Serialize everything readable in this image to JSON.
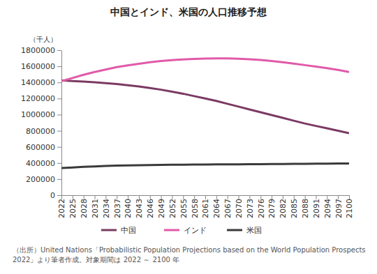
{
  "chart_data": {
    "type": "line",
    "title": "中国とインド、米国の人口推移予想",
    "y_label": "（千人）",
    "source": "（出所）United Nations「Probabilistic Population Projections based on the World Population Prospects 2022」より筆者作成。対象期間は 2022 ～ 2100 年",
    "x": [
      2022,
      2025,
      2028,
      2031,
      2034,
      2037,
      2040,
      2043,
      2046,
      2049,
      2052,
      2055,
      2058,
      2061,
      2064,
      2067,
      2070,
      2073,
      2076,
      2079,
      2082,
      2085,
      2088,
      2091,
      2094,
      2097,
      2100
    ],
    "series": [
      {
        "name": "中国",
        "color": "#7b3a63",
        "values": [
          1425000,
          1418000,
          1410000,
          1402000,
          1392000,
          1380000,
          1365000,
          1350000,
          1330000,
          1310000,
          1285000,
          1260000,
          1230000,
          1200000,
          1170000,
          1135000,
          1100000,
          1065000,
          1030000,
          995000,
          960000,
          925000,
          890000,
          860000,
          830000,
          800000,
          770000
        ]
      },
      {
        "name": "インド",
        "color": "#e05aa8",
        "values": [
          1417000,
          1455000,
          1495000,
          1530000,
          1560000,
          1590000,
          1612000,
          1632000,
          1650000,
          1665000,
          1677000,
          1686000,
          1692000,
          1697000,
          1698000,
          1698000,
          1694000,
          1688000,
          1678000,
          1665000,
          1650000,
          1633000,
          1615000,
          1596000,
          1577000,
          1555000,
          1530000
        ]
      },
      {
        "name": "米国",
        "color": "#3a3a3a",
        "values": [
          338000,
          345000,
          352000,
          358000,
          363000,
          367000,
          370000,
          372000,
          374000,
          376000,
          378000,
          379000,
          380000,
          381000,
          382000,
          383000,
          384000,
          385000,
          386000,
          387000,
          388000,
          389000,
          390000,
          391000,
          392000,
          393000,
          394000
        ]
      }
    ],
    "xlim": [
      2022,
      2100
    ],
    "xticks": [
      2022,
      2025,
      2028,
      2031,
      2034,
      2037,
      2040,
      2043,
      2046,
      2049,
      2052,
      2055,
      2058,
      2061,
      2064,
      2067,
      2070,
      2073,
      2076,
      2079,
      2082,
      2085,
      2088,
      2091,
      2094,
      2097,
      2100
    ],
    "ylim": [
      0,
      1800000
    ],
    "yticks": [
      0,
      200000,
      400000,
      600000,
      800000,
      1000000,
      1200000,
      1400000,
      1600000,
      1800000
    ],
    "grid": false,
    "legend": "bottom"
  }
}
